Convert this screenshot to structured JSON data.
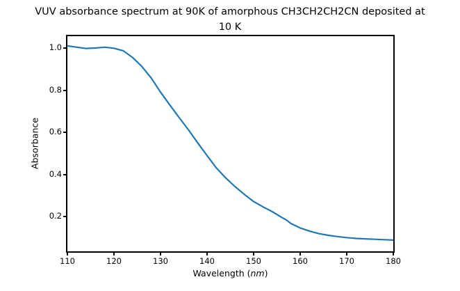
{
  "figure": {
    "title_lines": [
      "VUV absorbance spectrum at 90K of amorphous CH3CH2CH2CN deposited at",
      "10 K"
    ],
    "ylabel": "Absorbance",
    "xlabel_prefix": "Wavelength (",
    "xlabel_italic": "nm",
    "xlabel_suffix": ")"
  },
  "chart_data": {
    "type": "line",
    "title": "VUV absorbance spectrum at 90K of amorphous CH3CH2CH2CN deposited at 10 K",
    "xlabel": "Wavelength (nm)",
    "ylabel": "Absorbance",
    "xlim": [
      110,
      180
    ],
    "ylim": [
      0.036,
      1.056
    ],
    "xticks": [
      110,
      120,
      130,
      140,
      150,
      160,
      170,
      180
    ],
    "yticks": [
      0.2,
      0.4,
      0.6,
      0.8,
      1.0
    ],
    "ytick_labels": [
      "0.2",
      "0.4",
      "0.6",
      "0.8",
      "1.0"
    ],
    "grid": false,
    "legend": null,
    "line_color": "#1f77b4",
    "line_width": 2.2,
    "series": [
      {
        "name": "VUV absorbance",
        "x": [
          110,
          112,
          114,
          116,
          118,
          120,
          122,
          124,
          126,
          128,
          130,
          132,
          134,
          136,
          138,
          140,
          142,
          144,
          146,
          148,
          150,
          152,
          154,
          156,
          157,
          158,
          160,
          162,
          164,
          166,
          168,
          170,
          172,
          174,
          176,
          178,
          180
        ],
        "y": [
          1.01,
          1.004,
          0.998,
          1.0,
          1.004,
          0.999,
          0.987,
          0.955,
          0.912,
          0.858,
          0.791,
          0.73,
          0.67,
          0.612,
          0.55,
          0.49,
          0.431,
          0.384,
          0.343,
          0.306,
          0.272,
          0.247,
          0.224,
          0.197,
          0.185,
          0.168,
          0.147,
          0.132,
          0.12,
          0.112,
          0.106,
          0.101,
          0.097,
          0.095,
          0.093,
          0.091,
          0.089
        ]
      }
    ]
  }
}
